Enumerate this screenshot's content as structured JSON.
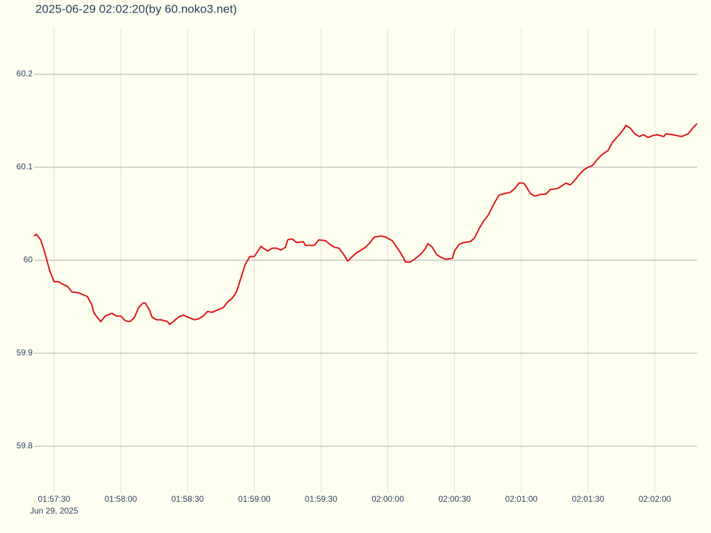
{
  "chart_data": {
    "type": "line",
    "title": "2025-06-29 02:02:20(by 60.noko3.net)",
    "date_label": "Jun 29, 2025",
    "x": [
      "01:57:21",
      "01:57:22",
      "01:57:24",
      "01:57:26",
      "01:57:28",
      "01:57:30",
      "01:57:32",
      "01:57:34",
      "01:57:36",
      "01:57:38",
      "01:57:41",
      "01:57:45",
      "01:57:47",
      "01:57:48",
      "01:57:51",
      "01:57:53",
      "01:57:56",
      "01:57:58",
      "01:58:00",
      "01:58:02",
      "01:58:04",
      "01:58:06",
      "01:58:08",
      "01:58:10",
      "01:58:11",
      "01:58:13",
      "01:58:14",
      "01:58:16",
      "01:58:18",
      "01:58:21",
      "01:58:22",
      "01:58:24",
      "01:58:26",
      "01:58:28",
      "01:58:31",
      "01:58:33",
      "01:58:35",
      "01:58:37",
      "01:58:39",
      "01:58:41",
      "01:58:43",
      "01:58:46",
      "01:58:48",
      "01:58:50",
      "01:58:52",
      "01:58:54",
      "01:58:56",
      "01:58:58",
      "01:59:00",
      "01:59:03",
      "01:59:04",
      "01:59:06",
      "01:59:08",
      "01:59:10",
      "01:59:12",
      "01:59:14",
      "01:59:15",
      "01:59:17",
      "01:59:19",
      "01:59:22",
      "01:59:23",
      "01:59:25",
      "01:59:27",
      "01:59:29",
      "01:59:32",
      "01:59:34",
      "01:59:36",
      "01:59:38",
      "01:59:40",
      "01:59:42",
      "01:59:44",
      "01:59:46",
      "01:59:48",
      "01:59:50",
      "01:59:52",
      "01:59:54",
      "01:59:57",
      "01:59:59",
      "02:00:02",
      "02:00:04",
      "02:00:06",
      "02:00:08",
      "02:00:10",
      "02:00:12",
      "02:00:15",
      "02:00:17",
      "02:00:18",
      "02:00:20",
      "02:00:22",
      "02:00:24",
      "02:00:26",
      "02:00:29",
      "02:00:30",
      "02:00:32",
      "02:00:34",
      "02:00:37",
      "02:00:39",
      "02:00:41",
      "02:00:43",
      "02:00:45",
      "02:00:48",
      "02:00:50",
      "02:00:53",
      "02:00:55",
      "02:00:57",
      "02:00:59",
      "02:01:01",
      "02:01:02",
      "02:01:04",
      "02:01:06",
      "02:01:09",
      "02:01:11",
      "02:01:13",
      "02:01:16",
      "02:01:17",
      "02:01:20",
      "02:01:22",
      "02:01:24",
      "02:01:26",
      "02:01:28",
      "02:01:30",
      "02:01:32",
      "02:01:34",
      "02:01:36",
      "02:01:39",
      "02:01:41",
      "02:01:44",
      "02:01:46",
      "02:01:47",
      "02:01:49",
      "02:01:51",
      "02:01:53",
      "02:01:55",
      "02:01:57",
      "02:01:59",
      "02:02:01",
      "02:02:04",
      "02:02:05",
      "02:02:08",
      "02:02:10",
      "02:02:12",
      "02:02:15",
      "02:02:17",
      "02:02:19"
    ],
    "series": [
      {
        "color": "#dd1111",
        "values": [
          60.026,
          60.028,
          60.022,
          60.007,
          59.989,
          59.977,
          59.977,
          59.974,
          59.972,
          59.966,
          59.965,
          59.961,
          59.952,
          59.943,
          59.934,
          59.94,
          59.943,
          59.94,
          59.94,
          59.935,
          59.934,
          59.938,
          59.949,
          59.954,
          59.954,
          59.946,
          59.939,
          59.936,
          59.936,
          59.934,
          59.931,
          59.935,
          59.939,
          59.941,
          59.938,
          59.936,
          59.937,
          59.94,
          59.945,
          59.944,
          59.946,
          59.949,
          59.955,
          59.959,
          59.966,
          59.981,
          59.996,
          60.004,
          60.004,
          60.015,
          60.013,
          60.01,
          60.013,
          60.013,
          60.011,
          60.014,
          60.022,
          60.023,
          60.019,
          60.02,
          60.016,
          60.016,
          60.016,
          60.022,
          60.021,
          60.017,
          60.014,
          60.013,
          60.007,
          59.999,
          60.004,
          60.008,
          60.011,
          60.014,
          60.019,
          60.025,
          60.026,
          60.025,
          60.021,
          60.014,
          60.007,
          59.998,
          59.998,
          60.001,
          60.007,
          60.013,
          60.018,
          60.014,
          60.006,
          60.003,
          60.001,
          60.002,
          60.01,
          60.017,
          60.019,
          60.02,
          60.024,
          60.034,
          60.042,
          60.048,
          60.062,
          60.07,
          60.072,
          60.073,
          60.077,
          60.083,
          60.083,
          60.08,
          60.072,
          60.069,
          60.071,
          60.071,
          60.076,
          60.077,
          60.078,
          60.083,
          60.081,
          60.086,
          60.092,
          60.097,
          60.1,
          60.102,
          60.108,
          60.113,
          60.118,
          60.127,
          60.135,
          60.141,
          60.145,
          60.142,
          60.136,
          60.133,
          60.135,
          60.132,
          60.134,
          60.135,
          60.133,
          60.136,
          60.135,
          60.134,
          60.133,
          60.136,
          60.142,
          60.147
        ]
      }
    ],
    "xlim": [
      "01:57:21",
      "02:02:19"
    ],
    "xticks": [
      "01:57:30",
      "01:58:00",
      "01:58:30",
      "01:59:00",
      "01:59:30",
      "02:00:00",
      "02:00:30",
      "02:01:00",
      "02:01:30",
      "02:02:00"
    ],
    "ylim": [
      59.75,
      60.25
    ],
    "yticks": [
      59.8,
      59.9,
      60,
      60.1,
      60.2
    ],
    "grid": true
  }
}
